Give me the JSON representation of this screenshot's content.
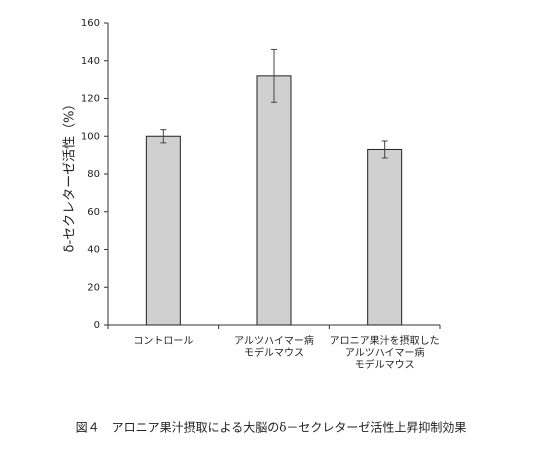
{
  "chart_data": {
    "type": "bar",
    "caption": "図４　アロニア果汁摂取による大脳のδ－セクレターゼ活性上昇抑制効果",
    "y_label": "δ-セクレターゼ活性（%）",
    "categories": [
      [
        "コントロール"
      ],
      [
        "アルツハイマー病",
        "モデルマウス"
      ],
      [
        "アロニア果汁を摂取した",
        "アルツハイマー病",
        "モデルマウス"
      ]
    ],
    "values": [
      100,
      132,
      93
    ],
    "errors": [
      3.5,
      14,
      4.5
    ],
    "color": "#d0d0d0",
    "ylim": [
      0,
      160
    ],
    "yticks": [
      0,
      20,
      40,
      60,
      80,
      100,
      120,
      140,
      160
    ]
  }
}
